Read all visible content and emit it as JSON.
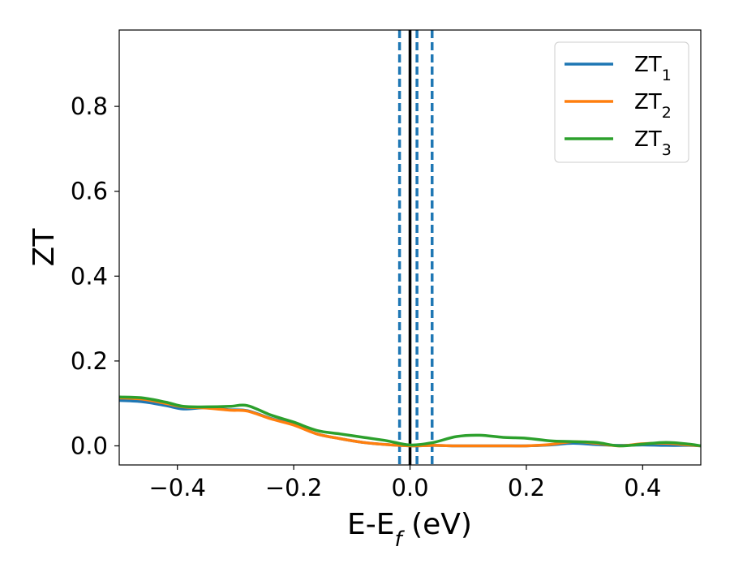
{
  "chart_data": {
    "type": "line",
    "xlabel": "E-E",
    "xlabel_sub": "f",
    "xlabel_unit": " (eV)",
    "ylabel": "ZT",
    "xlim": [
      -0.5,
      0.5
    ],
    "ylim": [
      -0.045,
      0.98
    ],
    "x_ticks": [
      -0.4,
      -0.2,
      0.0,
      0.2,
      0.4
    ],
    "x_tick_labels": [
      "−0.4",
      "−0.2",
      "0.0",
      "0.2",
      "0.4"
    ],
    "y_ticks": [
      0.0,
      0.2,
      0.4,
      0.6,
      0.8
    ],
    "y_tick_labels": [
      "0.0",
      "0.2",
      "0.4",
      "0.6",
      "0.8"
    ],
    "grid": false,
    "legend_position": "top-right",
    "vertical_lines": [
      {
        "x": 0.0,
        "style": "solid",
        "color": "#000000"
      },
      {
        "x": -0.018,
        "style": "dashed",
        "color": "#1f77b4"
      },
      {
        "x": 0.012,
        "style": "dashed",
        "color": "#1f77b4"
      },
      {
        "x": 0.038,
        "style": "dashed",
        "color": "#1f77b4"
      }
    ],
    "series": [
      {
        "name": "ZT",
        "name_sub": "1",
        "color": "#1f77b4",
        "x": [
          -0.5,
          -0.46,
          -0.42,
          -0.39,
          -0.35,
          -0.31,
          -0.28,
          -0.24,
          -0.2,
          -0.16,
          -0.12,
          -0.08,
          -0.04,
          0.0,
          0.04,
          0.08,
          0.12,
          0.16,
          0.2,
          0.24,
          0.28,
          0.32,
          0.36,
          0.4,
          0.44,
          0.48,
          0.5
        ],
        "y": [
          0.107,
          0.104,
          0.095,
          0.087,
          0.09,
          0.085,
          0.083,
          0.065,
          0.05,
          0.028,
          0.017,
          0.008,
          0.003,
          0.0,
          0.001,
          0.0,
          0.0,
          0.0,
          0.0,
          0.002,
          0.006,
          0.003,
          0.001,
          0.002,
          0.001,
          0.001,
          0.0
        ]
      },
      {
        "name": "ZT",
        "name_sub": "2",
        "color": "#ff7f0e",
        "x": [
          -0.5,
          -0.46,
          -0.42,
          -0.39,
          -0.35,
          -0.31,
          -0.28,
          -0.24,
          -0.2,
          -0.16,
          -0.12,
          -0.08,
          -0.04,
          0.0,
          0.04,
          0.08,
          0.12,
          0.16,
          0.2,
          0.24,
          0.28,
          0.32,
          0.36,
          0.4,
          0.44,
          0.48,
          0.5
        ],
        "y": [
          0.113,
          0.11,
          0.1,
          0.092,
          0.089,
          0.084,
          0.082,
          0.064,
          0.049,
          0.028,
          0.017,
          0.008,
          0.003,
          0.0,
          0.001,
          0.0,
          0.0,
          0.0,
          0.0,
          0.003,
          0.01,
          0.006,
          0.0,
          0.005,
          0.006,
          0.002,
          0.0
        ]
      },
      {
        "name": "ZT",
        "name_sub": "3",
        "color": "#2ca02c",
        "x": [
          -0.5,
          -0.46,
          -0.42,
          -0.39,
          -0.35,
          -0.31,
          -0.28,
          -0.24,
          -0.2,
          -0.16,
          -0.12,
          -0.08,
          -0.04,
          0.0,
          0.04,
          0.08,
          0.12,
          0.16,
          0.2,
          0.24,
          0.28,
          0.32,
          0.36,
          0.4,
          0.44,
          0.48,
          0.5
        ],
        "y": [
          0.115,
          0.113,
          0.103,
          0.093,
          0.092,
          0.093,
          0.095,
          0.073,
          0.056,
          0.036,
          0.028,
          0.02,
          0.012,
          0.002,
          0.008,
          0.022,
          0.025,
          0.02,
          0.018,
          0.012,
          0.01,
          0.008,
          0.0,
          0.004,
          0.008,
          0.004,
          0.0
        ]
      }
    ]
  }
}
